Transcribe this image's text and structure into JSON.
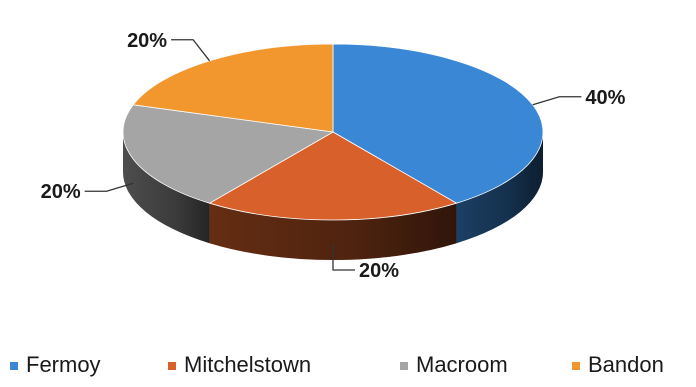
{
  "chart_data": {
    "type": "pie",
    "style": "3d",
    "categories": [
      "Fermoy",
      "Mitchelstown",
      "Macroom",
      "Bandon"
    ],
    "values": [
      40,
      20,
      20,
      20
    ],
    "data_labels": [
      "40%",
      "20%",
      "20%",
      "20%"
    ],
    "colors": [
      "#3a87d6",
      "#d8602a",
      "#a5a5a5",
      "#f2962e"
    ],
    "legend_position": "bottom",
    "title": ""
  }
}
